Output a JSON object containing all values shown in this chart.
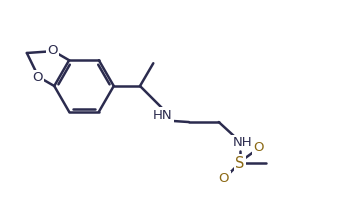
{
  "bg_color": "#ffffff",
  "line_color": "#2b2b4e",
  "line_width": 1.8,
  "font_size": 9.5,
  "font_color": "#2b2b4e",
  "s_color": "#8B6914",
  "o_color": "#8B6914",
  "nh_color": "#2b2b4e",
  "figsize": [
    3.5,
    2.14
  ],
  "dpi": 100,
  "xlim": [
    0,
    10
  ],
  "ylim": [
    0,
    6
  ]
}
